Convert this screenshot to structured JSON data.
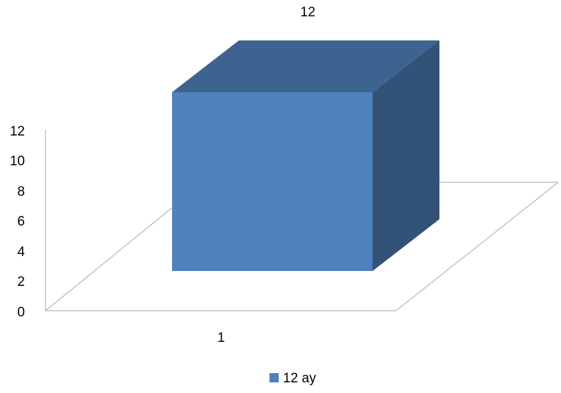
{
  "chart_data": {
    "type": "bar",
    "categories": [
      "1"
    ],
    "series": [
      {
        "name": "12 ay",
        "values": [
          12
        ],
        "color": "#4f81bd"
      }
    ],
    "data_labels": [
      "12"
    ],
    "y_ticks": [
      "0",
      "2",
      "4",
      "6",
      "8",
      "10",
      "12"
    ],
    "ylim": [
      0,
      12
    ],
    "grid": false,
    "legend": "bottom",
    "style": "3d-column"
  }
}
